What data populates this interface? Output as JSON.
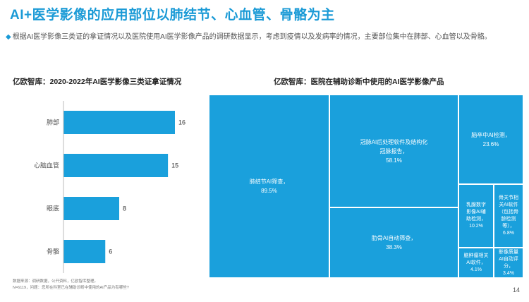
{
  "page": {
    "title": "AI+医学影像的应用部位以肺结节、心血管、骨骼为主",
    "intro_marker": "◆",
    "intro": "根据AI医学影像三类证的拿证情况以及医院使用AI医学影像产品的调研数据显示，考虑到疫情以及发病率的情况，主要部位集中在肺部、心血管以及骨骼。",
    "footnote_line1": "数据来源：调研数据，公开资料，亿欧智库整理。",
    "footnote_line2": "N=6119，问题：您所在科室已在辅助诊断中使用的AI产品为有哪些?",
    "page_number": "14"
  },
  "colors": {
    "accent": "#1a9ad6",
    "bar": "#1aa0dc",
    "cell": "#1aa0dc"
  },
  "chart_data": [
    {
      "type": "bar",
      "orientation": "horizontal",
      "title": "亿欧智库：2020-2022年AI医学影像三类证拿证情况",
      "categories": [
        "肺部",
        "心脑血管",
        "眼底",
        "骨骼"
      ],
      "values": [
        16,
        15,
        8,
        6
      ],
      "xlim": [
        0,
        16
      ],
      "grid": false
    },
    {
      "type": "treemap",
      "title": "亿欧智库：医院在辅助诊断中使用的AI医学影像产品",
      "items": [
        {
          "label": "肺结节AI筛查，",
          "value": "89.5%"
        },
        {
          "label": "冠脉AI后处理软件及结构化冠脉报告，",
          "value": "58.1%"
        },
        {
          "label": "肋骨AI自动筛查，",
          "value": "38.3%"
        },
        {
          "label": "脑卒中AI检测，",
          "value": "23.6%"
        },
        {
          "label": "乳腺数字影像AI辅助检测，",
          "value": "10.2%"
        },
        {
          "label": "骨关节相关AI软件（包括骨龄检测等），",
          "value": "6.8%"
        },
        {
          "label": "脑肿瘤相关AI软件，",
          "value": "4.1%"
        },
        {
          "label": "影像质量AI自动评分，",
          "value": "3.4%"
        }
      ]
    }
  ]
}
